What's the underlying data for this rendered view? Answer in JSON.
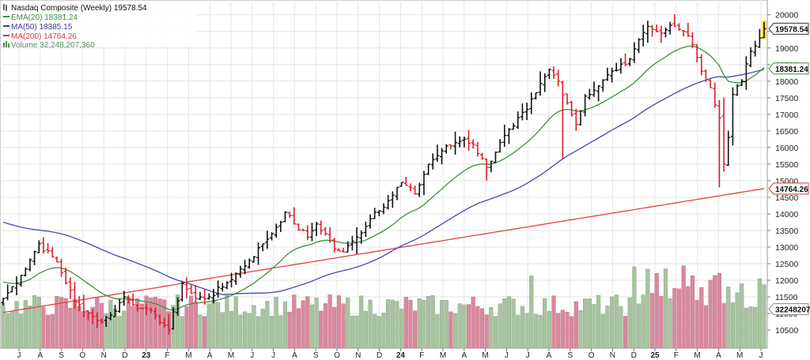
{
  "chart_data": {
    "type": "ohlc",
    "title": "Nasdaq Composite (Weekly) 19578.54",
    "legend": [
      {
        "label": "EMA(20) 18381.24",
        "color": "#3f8f3f"
      },
      {
        "label": "MA(50) 18385.15",
        "color": "#3a3aa0"
      },
      {
        "label": "MA(200) 14764.26",
        "color": "#d33a3a"
      },
      {
        "label": "Volume 32,248,207,360",
        "color": "#5a8a5a"
      }
    ],
    "y_axis": {
      "ticks": [
        "20000",
        "19500",
        "19000",
        "18500",
        "18000",
        "17500",
        "17000",
        "16500",
        "16000",
        "15500",
        "15000",
        "14500",
        "14000",
        "13500",
        "13000",
        "12500",
        "12000",
        "11500",
        "11000",
        "10500"
      ],
      "range": [
        10050,
        20350
      ]
    },
    "x_axis": {
      "ticks": [
        "J",
        "A",
        "S",
        "O",
        "N",
        "D",
        "23",
        "F",
        "M",
        "A",
        "M",
        "J",
        "J",
        "A",
        "S",
        "O",
        "N",
        "D",
        "24",
        "F",
        "M",
        "A",
        "M",
        "J",
        "J",
        "A",
        "S",
        "O",
        "N",
        "D",
        "25",
        "F",
        "M",
        "A",
        "M",
        "J"
      ],
      "bold_ticks": [
        "23",
        "24",
        "25"
      ]
    },
    "price_tags": [
      {
        "label": "19578.54",
        "value": 19578.54,
        "fill": "#ffffff",
        "stroke": "#333333"
      },
      {
        "label": "18381.24",
        "value": 18381.24,
        "fill": "#ffffff",
        "stroke": "#3f8f3f"
      },
      {
        "label": "14764.26",
        "value": 14764.26,
        "fill": "#ffffff",
        "stroke": "#d33a3a"
      },
      {
        "label": "32248207",
        "value": 11130,
        "fill": "#ffffff",
        "stroke": "#888888"
      }
    ],
    "colors": {
      "up": "#111111",
      "down": "#dd1f2d",
      "last": "#ffe24a",
      "ema20": "#3f8f3f",
      "ma50": "#4a4aa8",
      "ma200": "#e04444",
      "vol_up": "#a8c3a0",
      "vol_down": "#d9899e"
    },
    "anchors": [
      [
        0,
        11450
      ],
      [
        4,
        12150
      ],
      [
        8,
        13100
      ],
      [
        12,
        12550
      ],
      [
        16,
        11350
      ],
      [
        20,
        10900
      ],
      [
        22,
        10750
      ],
      [
        24,
        10950
      ],
      [
        27,
        11500
      ],
      [
        31,
        11150
      ],
      [
        34,
        10950
      ],
      [
        37,
        10500
      ],
      [
        40,
        11900
      ],
      [
        43,
        11450
      ],
      [
        46,
        11500
      ],
      [
        49,
        11800
      ],
      [
        52,
        12200
      ],
      [
        55,
        12600
      ],
      [
        58,
        13100
      ],
      [
        61,
        13600
      ],
      [
        63,
        14050
      ],
      [
        65,
        13700
      ],
      [
        68,
        13300
      ],
      [
        70,
        13700
      ],
      [
        72,
        13400
      ],
      [
        74,
        12950
      ],
      [
        76,
        12850
      ],
      [
        79,
        13300
      ],
      [
        83,
        14050
      ],
      [
        86,
        14400
      ],
      [
        89,
        14950
      ],
      [
        92,
        14600
      ],
      [
        95,
        15500
      ],
      [
        98,
        15900
      ],
      [
        101,
        16150
      ],
      [
        103,
        16250
      ],
      [
        105,
        16100
      ],
      [
        108,
        15400
      ],
      [
        111,
        16150
      ],
      [
        114,
        16650
      ],
      [
        117,
        17150
      ],
      [
        119,
        17650
      ],
      [
        122,
        18350
      ],
      [
        124,
        18000
      ],
      [
        126,
        17350
      ],
      [
        128,
        16700
      ],
      [
        130,
        17550
      ],
      [
        133,
        17850
      ],
      [
        136,
        18300
      ],
      [
        139,
        18500
      ],
      [
        142,
        19250
      ],
      [
        144,
        19650
      ],
      [
        146,
        19500
      ],
      [
        148,
        19550
      ],
      [
        150,
        19650
      ],
      [
        152,
        19500
      ],
      [
        154,
        19100
      ],
      [
        156,
        18300
      ],
      [
        158,
        17800
      ],
      [
        160,
        16900
      ],
      [
        161,
        15500
      ],
      [
        162,
        16300
      ],
      [
        163,
        17600
      ],
      [
        165,
        18000
      ],
      [
        167,
        18900
      ],
      [
        169,
        19300
      ],
      [
        170,
        19578
      ]
    ]
  }
}
